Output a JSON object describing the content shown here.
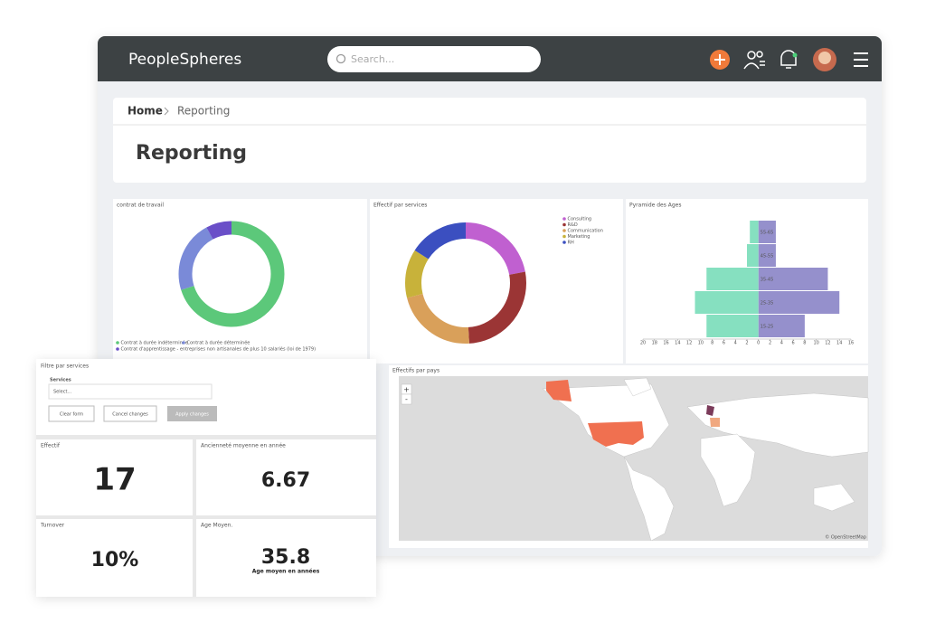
{
  "header": {
    "logo": "PeopleSpheres",
    "search_placeholder": "Search..."
  },
  "breadcrumb": {
    "home": "Home",
    "current": "Reporting"
  },
  "page_title": "Reporting",
  "contract_chart": {
    "type": "pie",
    "title": "contrat de travail",
    "categories": [
      "Contrat à durée indéterminée",
      "Contrat à durée déterminée",
      "Contrat d'apprentissage - entreprises non artisanales de plus 10 salariés (loi de 1979)"
    ],
    "values": [
      70,
      22,
      8
    ],
    "colors": [
      "#5cc87a",
      "#7a8ad8",
      "#6a4fc8"
    ]
  },
  "services_chart": {
    "type": "pie",
    "title": "Effectif par services",
    "categories": [
      "Consulting",
      "R&D",
      "Communication",
      "Marketing",
      "RH"
    ],
    "values": [
      22,
      27,
      22,
      13,
      16
    ],
    "colors": [
      "#c060d0",
      "#9b3535",
      "#d9a05a",
      "#c8b23a",
      "#3b4fc0"
    ]
  },
  "age_pyramid": {
    "type": "bar",
    "title": "Pyramide des Ages",
    "categories": [
      "55-65",
      "45-55",
      "35-45",
      "25-35",
      "15-25"
    ],
    "series": [
      {
        "color": "#86e0c0",
        "values": [
          1.5,
          2,
          9,
          11,
          9
        ]
      },
      {
        "color": "#9590cc",
        "values": [
          3,
          3,
          12,
          14,
          8
        ]
      }
    ],
    "xlim": [
      -20,
      16
    ],
    "xticks": [
      {
        "value": -20,
        "label": "20"
      },
      {
        "value": -18,
        "label": "18"
      },
      {
        "value": -16,
        "label": "16"
      },
      {
        "value": -14,
        "label": "14"
      },
      {
        "value": -12,
        "label": "12"
      },
      {
        "value": -10,
        "label": "10"
      },
      {
        "value": -8,
        "label": "8"
      },
      {
        "value": -6,
        "label": "6"
      },
      {
        "value": -4,
        "label": "4"
      },
      {
        "value": -2,
        "label": "2"
      },
      0,
      2,
      4,
      6,
      8,
      10,
      12,
      14,
      16
    ]
  },
  "map": {
    "title": "Effectifs par pays",
    "zoom_in": "+",
    "zoom_out": "-",
    "attribution": "© OpenStreetMap"
  },
  "filter": {
    "title": "Filtre par services",
    "label": "Services",
    "placeholder": "Select...",
    "buttons": [
      "Clear form",
      "Cancel changes",
      "Apply changes"
    ]
  },
  "kpis": [
    {
      "title": "Effectif",
      "value": 17
    },
    {
      "title": "Ancienneté moyenne en année",
      "value": 6.67
    },
    {
      "title": "Turnover",
      "value": "10%"
    },
    {
      "title": "Age Moyen.",
      "value": 35.8,
      "caption": "Age moyen en années"
    }
  ]
}
